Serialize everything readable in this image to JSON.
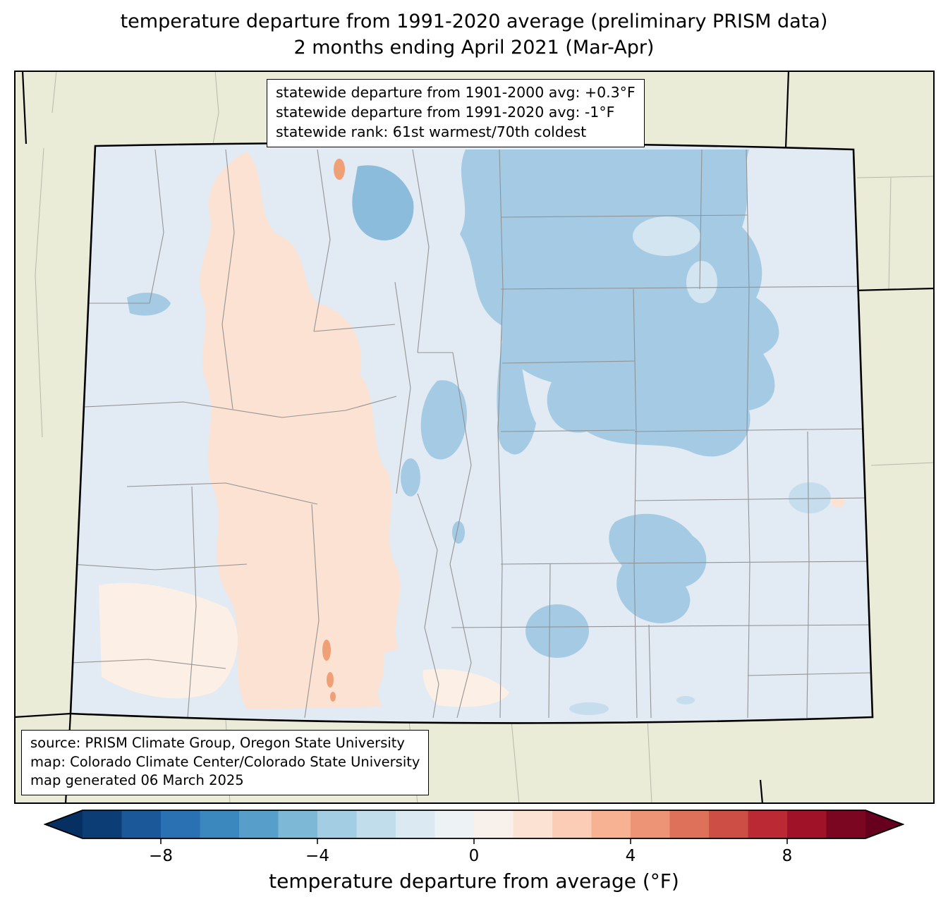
{
  "title": {
    "line1": "temperature departure from 1991-2020 average (preliminary PRISM data)",
    "line2": "2 months ending April 2021 (Mar-Apr)"
  },
  "stats_box": {
    "lines": [
      "statewide departure from 1901-2000 avg: +0.3°F",
      "statewide departure from 1991-2020 avg: -1°F",
      "statewide rank: 61st warmest/70th coldest"
    ]
  },
  "source_box": {
    "lines": [
      "source: PRISM Climate Group, Oregon State University",
      "map: Colorado Climate Center/Colorado State University",
      "map generated 06 March 2025"
    ]
  },
  "colorbar": {
    "label": "temperature departure from average (°F)",
    "ticks": [
      "−8",
      "−4",
      "0",
      "4",
      "8"
    ],
    "tick_values": [
      -8,
      -4,
      0,
      4,
      8
    ],
    "range": [
      -10,
      10
    ],
    "segment_colors": [
      "#0c3d74",
      "#1a5899",
      "#2971b2",
      "#3a88bd",
      "#579fca",
      "#7eb8d7",
      "#a2cde2",
      "#c1ddeb",
      "#dae9f2",
      "#edf2f5",
      "#f8f0eb",
      "#fbe2d3",
      "#fbcdb6",
      "#f6b293",
      "#ec9475",
      "#dd715a",
      "#cd4e44",
      "#bb2a34",
      "#9f1228",
      "#7a0622"
    ],
    "left_arrow_color": "#053061",
    "right_arrow_color": "#67001f"
  },
  "map": {
    "region": "Colorado",
    "colors": {
      "outside": "#eaecd8",
      "state_fill": "#e2ebf3",
      "blue_light": "#c6ddee",
      "blue_mid": "#a5cbe4",
      "blue_deep": "#8bbcdc",
      "blue_hole": "#d3e5f1",
      "pink_light": "#fbe2d2",
      "pink_pale": "#fcefe6",
      "orange_spot": "#f0a077",
      "county_line": "#8f8f8f",
      "neighbor_county_line": "#b3b3a6",
      "state_border": "#000000",
      "frame": "#000000"
    }
  }
}
